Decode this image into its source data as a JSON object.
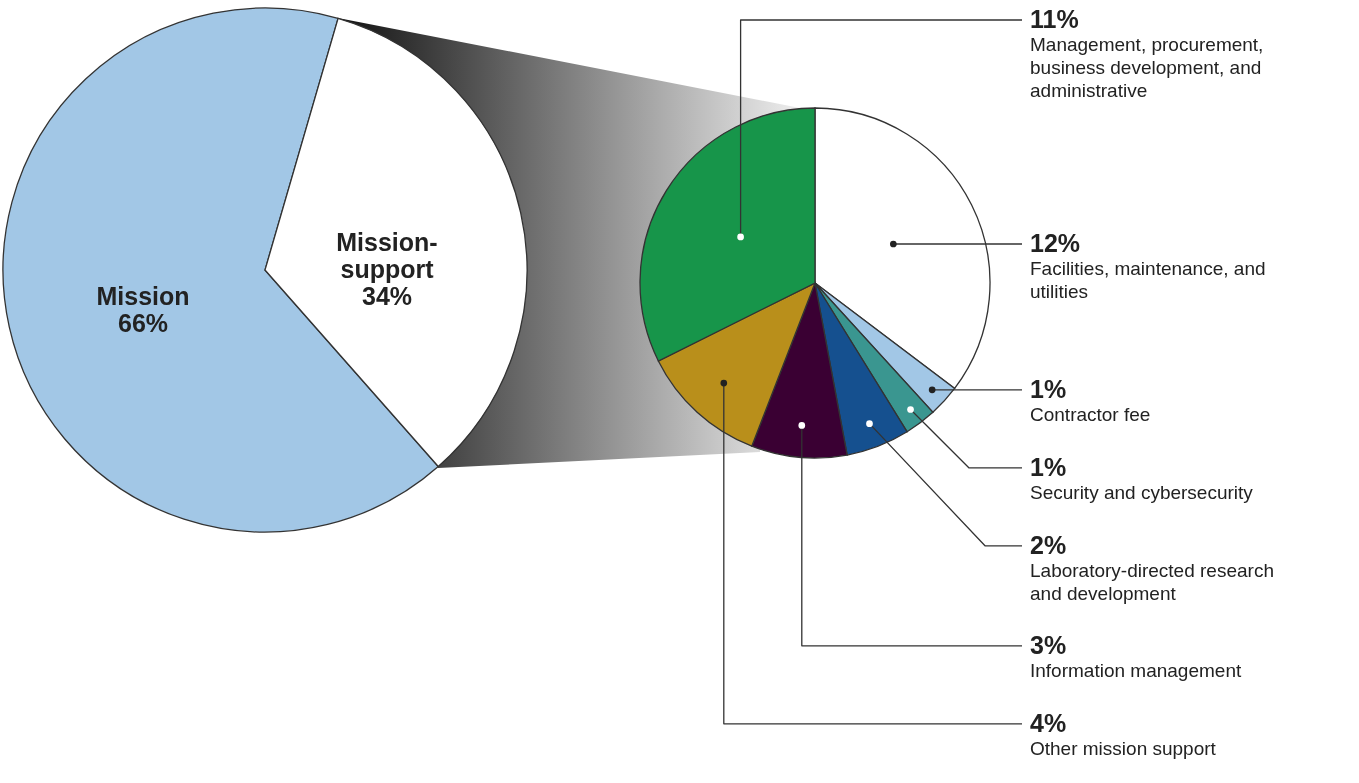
{
  "chart_data": [
    {
      "type": "pie",
      "categories": [
        "Mission",
        "Mission-support"
      ],
      "values": [
        66,
        34
      ],
      "colors": [
        "#a2c7e6",
        "#ffffff"
      ],
      "value_labels": [
        "66%",
        "34%"
      ]
    },
    {
      "type": "pie",
      "categories": [
        "Facilities, maintenance, and utilities",
        "Contractor fee",
        "Security and cybersecurity",
        "Laboratory-directed research and development",
        "Information management",
        "Other mission support",
        "Management, procurement, business development, and administrative"
      ],
      "values": [
        12,
        1,
        1,
        2,
        3,
        4,
        11
      ],
      "colors": [
        "#ffffff",
        "#a2c7e6",
        "#3a9690",
        "#15508f",
        "#3a0033",
        "#b98f1b",
        "#17954a"
      ],
      "value_labels": [
        "12%",
        "1%",
        "1%",
        "2%",
        "3%",
        "4%",
        "11%"
      ]
    }
  ]
}
